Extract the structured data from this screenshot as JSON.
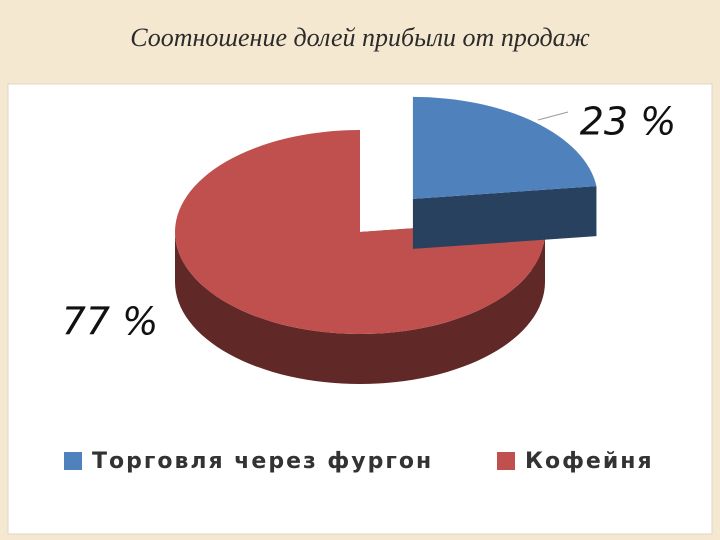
{
  "chart_data": {
    "type": "pie",
    "title": "Соотношение долей прибыли от продаж",
    "categories": [
      "Торговля через фургон",
      "Кофейня"
    ],
    "values": [
      23,
      77
    ],
    "value_labels": [
      "23 %",
      "77 %"
    ],
    "colors": [
      "#4f81bd",
      "#c0504d"
    ],
    "legend": "bottom",
    "style": "3d-exploded"
  }
}
